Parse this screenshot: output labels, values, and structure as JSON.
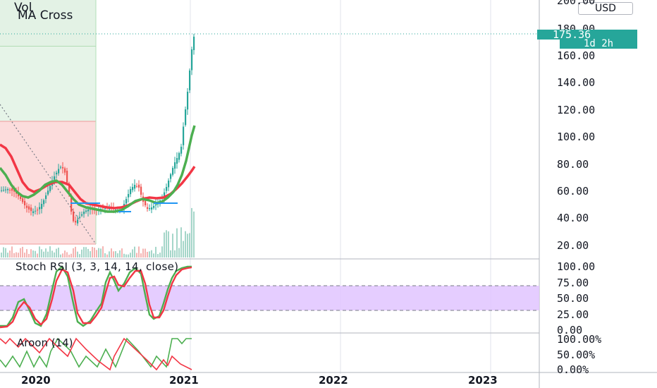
{
  "indicators": {
    "volume": "Vol",
    "ma_cross": "MA Cross",
    "stoch_rsi": "Stoch RSI (3, 3, 14, 14, close)",
    "aroon": "Aroon (14)"
  },
  "price_scale": {
    "currency": "USD",
    "ticks": [
      "200.00",
      "180.00",
      "160.00",
      "140.00",
      "120.00",
      "100.00",
      "80.00",
      "60.00",
      "40.00",
      "20.00"
    ],
    "last_price": "175.36",
    "countdown": "1d 2h"
  },
  "stoch_scale": {
    "ticks": [
      "100.00",
      "75.00",
      "50.00",
      "25.00",
      "0.00"
    ]
  },
  "aroon_scale": {
    "ticks": [
      "100.00%",
      "50.00%",
      "0.00%"
    ]
  },
  "time_axis": {
    "ticks": [
      "2020",
      "2021",
      "2022",
      "2023"
    ]
  },
  "colors": {
    "up": "#26a69a",
    "down": "#ef5350",
    "ma_fast": "#4caf50",
    "ma_slow": "#f23645",
    "stoch_band": "#e1c4ff",
    "long_zone": "#e3f2e5",
    "short_zone": "#fcdcdc"
  }
}
